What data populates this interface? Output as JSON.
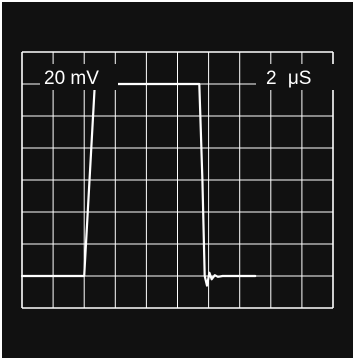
{
  "chart_data": {
    "type": "line",
    "x_divisions": 10,
    "y_divisions": 8,
    "grid": true,
    "volts_per_div_label": "20 mV",
    "time_per_div_label_value": "2",
    "time_per_div_label_unit": "μS",
    "x_unit": "μS",
    "y_unit": "mV",
    "x_per_div": 2,
    "y_per_div": 20,
    "xlim": [
      0,
      20
    ],
    "ylim": [
      -80,
      80
    ],
    "series": [
      {
        "values_x": [
          0.0,
          3.85,
          4.0,
          4.7,
          4.9,
          5.05,
          5.25,
          5.45,
          5.65,
          5.9,
          6.2,
          6.6,
          11.2,
          11.4,
          11.6,
          11.75,
          11.9,
          12.05,
          12.2,
          12.4,
          12.6,
          12.9,
          13.3,
          13.8,
          15.0
        ],
        "values_y": [
          -60,
          -60,
          -60,
          63,
          70,
          60,
          65,
          59,
          61.5,
          60,
          60,
          60,
          60,
          60,
          0,
          -60,
          -66,
          -58,
          -62,
          -59.5,
          -60.5,
          -60,
          -60,
          -60,
          -60
        ]
      }
    ],
    "colors": {
      "background": "#111111",
      "grid": "#ffffff",
      "trace": "#ffffff",
      "page": "#ffffff"
    }
  }
}
